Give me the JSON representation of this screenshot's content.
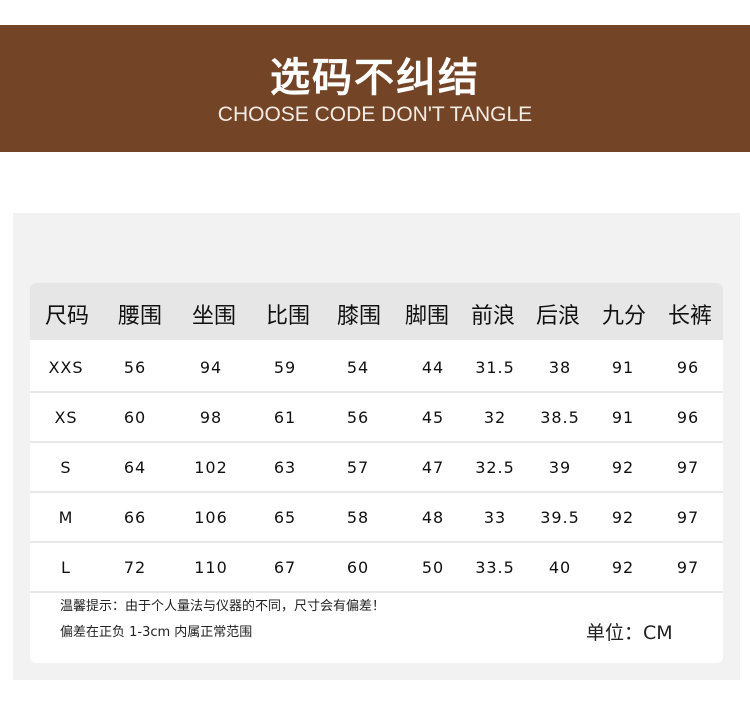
{
  "banner": {
    "title": "选码不纠结",
    "subtitle": "CHOOSE CODE DON'T TANGLE",
    "color": "#734526"
  },
  "table": {
    "headers": [
      "尺码",
      "腰围",
      "坐围",
      "比围",
      "膝围",
      "脚围",
      "前浪",
      "后浪",
      "九分",
      "长裤"
    ],
    "rows": [
      [
        "XXS",
        "56",
        "94",
        "59",
        "54",
        "44",
        "31.5",
        "38",
        "91",
        "96"
      ],
      [
        "XS",
        "60",
        "98",
        "61",
        "56",
        "45",
        "32",
        "38.5",
        "91",
        "96"
      ],
      [
        "S",
        "64",
        "102",
        "63",
        "57",
        "47",
        "32.5",
        "39",
        "92",
        "97"
      ],
      [
        "M",
        "66",
        "106",
        "65",
        "58",
        "48",
        "33",
        "39.5",
        "92",
        "97"
      ],
      [
        "L",
        "72",
        "110",
        "67",
        "60",
        "50",
        "33.5",
        "40",
        "92",
        "97"
      ]
    ]
  },
  "footer": {
    "note1": "温馨提示：由于个人量法与仪器的不同，尺寸会有偏差！",
    "note2": "偏差在正负 1-3cm 内属正常范围",
    "unit": "单位：CM"
  }
}
